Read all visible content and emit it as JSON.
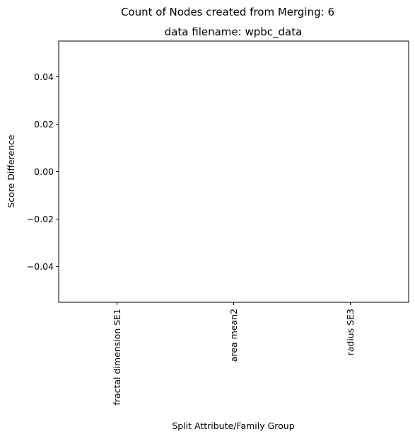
{
  "chart_data": {
    "type": "bar",
    "suptitle": "Count of Nodes created from Merging: 6",
    "title": "data filename: wpbc_data",
    "xlabel": "Split Attribute/Family Group",
    "ylabel": "Score Difference",
    "categories": [
      "fractal dimension SE1",
      "area mean2",
      "radius SE3"
    ],
    "values": [
      0,
      0,
      0
    ],
    "ylim": [
      -0.055,
      0.055
    ],
    "yticks": [
      -0.04,
      -0.02,
      0.0,
      0.02,
      0.04
    ],
    "ytick_labels": [
      "−0.04",
      "−0.02",
      "0.00",
      "0.02",
      "0.04"
    ],
    "grid": false,
    "legend": "none",
    "x_tick_rotation": "vertical"
  }
}
